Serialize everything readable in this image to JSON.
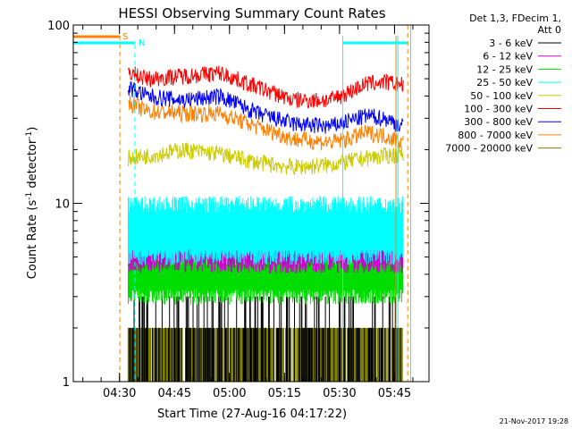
{
  "chart_data": {
    "type": "line",
    "title": "HESSI Observing Summary Count Rates",
    "xlabel": "Start Time (27-Aug-16 04:17:22)",
    "ylabel_main": "Count Rate (s",
    "ylabel_sup1": "-1",
    "ylabel_mid": " detector",
    "ylabel_sup2": "-1",
    "ylabel_end": ")",
    "y_scale": "log",
    "ylim": [
      1,
      100
    ],
    "xlim_minutes_after_0417": [
      0,
      97
    ],
    "x_ticks": [
      {
        "label": "04:30",
        "minutes": 12.6
      },
      {
        "label": "04:45",
        "minutes": 27.6
      },
      {
        "label": "05:00",
        "minutes": 42.6
      },
      {
        "label": "05:15",
        "minutes": 57.6
      },
      {
        "label": "05:30",
        "minutes": 72.6
      },
      {
        "label": "05:45",
        "minutes": 87.6
      }
    ],
    "y_ticks": [
      {
        "label": "1",
        "value": 1
      },
      {
        "label": "10",
        "value": 10
      },
      {
        "label": "100",
        "value": 100
      }
    ],
    "legend_header": [
      "Det 1,3, FDecim 1,",
      "Att 0"
    ],
    "legend_placement": "right",
    "series": [
      {
        "name": "3 - 6 keV",
        "color": "#000000",
        "band": [
          1,
          3
        ],
        "kind": "discrete_low",
        "x": [
          15,
          90
        ],
        "y": [
          1.7,
          1.7
        ]
      },
      {
        "name": "6 - 12 keV",
        "color": "#cc00cc",
        "band": [
          4.5,
          7
        ],
        "kind": "noisy",
        "x": [
          15,
          90
        ],
        "y": [
          5.5,
          5.5
        ]
      },
      {
        "name": "12 - 25 keV",
        "color": "#00dd00",
        "band": [
          3,
          6.8
        ],
        "kind": "noisy",
        "x": [
          15,
          90
        ],
        "y": [
          4.8,
          4.8
        ]
      },
      {
        "name": "25 - 50 keV",
        "color": "#00ffff",
        "band": [
          5,
          11
        ],
        "kind": "noisy",
        "x": [
          15,
          90
        ],
        "y": [
          7.5,
          7.5
        ]
      },
      {
        "name": "50 - 100 keV",
        "color": "#cccc00",
        "x": [
          15,
          20,
          30,
          40,
          50,
          60,
          70,
          80,
          85,
          90
        ],
        "y": [
          18,
          18.5,
          20,
          19,
          17,
          16,
          16.5,
          18,
          18.5,
          19
        ]
      },
      {
        "name": "100 - 300 keV",
        "color": "#ff0000",
        "x": [
          15,
          20,
          30,
          40,
          50,
          60,
          70,
          75,
          80,
          85,
          90
        ],
        "y": [
          55,
          50,
          52,
          54,
          45,
          38,
          38,
          42,
          47,
          48,
          46
        ]
      },
      {
        "name": "300 - 800 keV",
        "color": "#0000ff",
        "x": [
          15,
          20,
          30,
          40,
          50,
          60,
          70,
          75,
          80,
          85,
          90
        ],
        "y": [
          45,
          40,
          38,
          40,
          32,
          28,
          27,
          29,
          31,
          30,
          27
        ]
      },
      {
        "name": "800 - 7000 keV",
        "color": "#ff8000",
        "x": [
          15,
          20,
          30,
          40,
          50,
          60,
          70,
          75,
          80,
          85,
          90
        ],
        "y": [
          37,
          33,
          32,
          32,
          27,
          23,
          22,
          23,
          25,
          24,
          22
        ]
      },
      {
        "name": "7000 - 20000 keV",
        "color": "#808000",
        "band": [
          1,
          2
        ],
        "kind": "discrete_block",
        "x": [
          15,
          90
        ],
        "y": [
          1.4,
          1.4
        ]
      }
    ],
    "annotations": [
      {
        "text": "S",
        "color": "#ff8000"
      },
      {
        "text": "N",
        "color": "#00ffff"
      }
    ],
    "footer_date": "21-Nov-2017 19:28"
  }
}
